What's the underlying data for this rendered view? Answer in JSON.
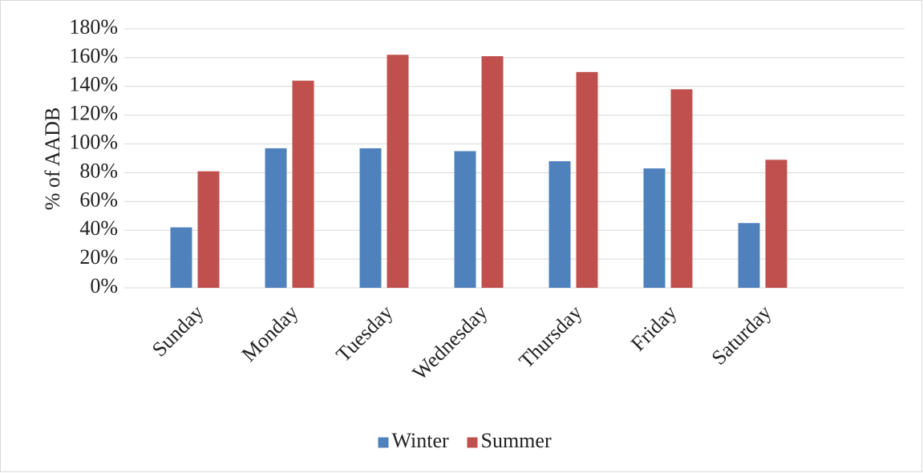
{
  "chart_data": {
    "type": "bar",
    "y_label": "% of AADB",
    "categories": [
      "Sunday",
      "Monday",
      "Tuesday",
      "Wednesday",
      "Thursday",
      "Friday",
      "Saturday",
      null
    ],
    "series": [
      {
        "name": "Winter",
        "color": "#4f81bd",
        "values": [
          42,
          97,
          97,
          95,
          88,
          83,
          45,
          null
        ]
      },
      {
        "name": "Summer",
        "color": "#c0504d",
        "values": [
          81,
          144,
          162,
          161,
          150,
          138,
          89,
          null
        ]
      }
    ],
    "ylim": [
      0,
      180
    ],
    "yticks": [
      {
        "value": 0,
        "label": "0%"
      },
      {
        "value": 20,
        "label": "20%"
      },
      {
        "value": 40,
        "label": "40%"
      },
      {
        "value": 60,
        "label": "60%"
      },
      {
        "value": 80,
        "label": "80%"
      },
      {
        "value": 100,
        "label": "100%"
      },
      {
        "value": 120,
        "label": "120%"
      },
      {
        "value": 140,
        "label": "140%"
      },
      {
        "value": 160,
        "label": "160%"
      },
      {
        "value": 180,
        "label": "180%"
      }
    ],
    "grid": true,
    "legend": "bottom"
  }
}
